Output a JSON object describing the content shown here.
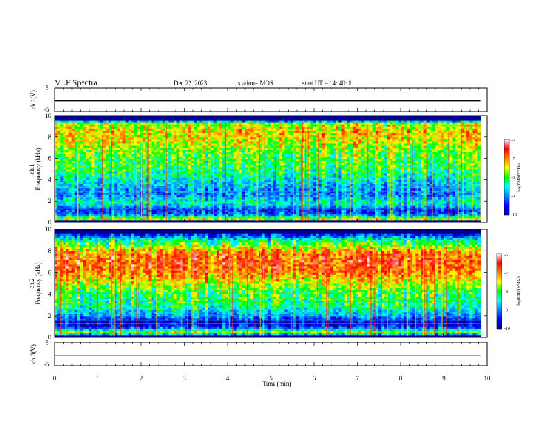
{
  "header": {
    "title": "VLF Spectra",
    "date": "Dec.22, 2023",
    "station": "station= MOS",
    "start": "start  UT  =   14: 40: 1"
  },
  "chart_data": [
    {
      "type": "line",
      "name": "ch1-waveform",
      "ylabel": "ch.1(V)",
      "ylim": [
        -5,
        5
      ],
      "yticks": [
        "5",
        "-5"
      ],
      "xlim": [
        0,
        10
      ],
      "level": -0.5
    },
    {
      "type": "heatmap",
      "name": "ch1-spectrogram",
      "ylabel": "ch.1\nFrequency (kHz)",
      "ylim": [
        0,
        10
      ],
      "yticks": [
        "0",
        "2",
        "4",
        "6",
        "8",
        "10"
      ],
      "xlim": [
        0,
        9.85
      ],
      "colorbar": {
        "label": "log(PSD)(V²/Hz)",
        "range": [
          -10,
          -6
        ],
        "ticks": [
          "-6",
          "-7",
          "-8",
          "-9",
          "-10"
        ]
      },
      "profile": [
        [
          0,
          -10
        ],
        [
          0.3,
          -7.6
        ],
        [
          0.8,
          -9.2
        ],
        [
          1.3,
          -9.3
        ],
        [
          1.6,
          -8.6
        ],
        [
          2.0,
          -8.4
        ],
        [
          2.6,
          -9.0
        ],
        [
          3.5,
          -8.7
        ],
        [
          5.0,
          -8.1
        ],
        [
          6.5,
          -7.9
        ],
        [
          7.5,
          -7.5
        ],
        [
          8.5,
          -7.3
        ],
        [
          9.3,
          -7.7
        ],
        [
          9.6,
          -9.3
        ],
        [
          10,
          -10
        ]
      ]
    },
    {
      "type": "heatmap",
      "name": "ch2-spectrogram",
      "ylabel": "ch.2\nFrequency (kHz)",
      "ylim": [
        0,
        10
      ],
      "yticks": [
        "0",
        "2",
        "4",
        "6",
        "8",
        "10"
      ],
      "xlim": [
        0,
        9.85
      ],
      "colorbar": {
        "label": "log(PSD)(V²/Hz)",
        "range": [
          -10,
          -6
        ],
        "ticks": [
          "-6",
          "-7",
          "-8",
          "-9",
          "-10"
        ]
      },
      "profile": [
        [
          0,
          -10
        ],
        [
          0.5,
          -7.8
        ],
        [
          1.0,
          -9.5
        ],
        [
          1.5,
          -9.7
        ],
        [
          2.0,
          -8.9
        ],
        [
          3.0,
          -8.2
        ],
        [
          4.0,
          -8.1
        ],
        [
          5.0,
          -7.6
        ],
        [
          6.0,
          -7.0
        ],
        [
          7.0,
          -6.8
        ],
        [
          7.8,
          -7.0
        ],
        [
          8.4,
          -7.6
        ],
        [
          9.0,
          -8.4
        ],
        [
          9.5,
          -9.4
        ],
        [
          10,
          -10
        ]
      ]
    },
    {
      "type": "line",
      "name": "ch3-waveform",
      "ylabel": "ch.3(V)",
      "ylim": [
        -5,
        5
      ],
      "yticks": [
        "5",
        "-5"
      ],
      "xlim": [
        0,
        10
      ],
      "level": -0.5
    }
  ],
  "xaxis": {
    "label": "Time (min)",
    "range": [
      0,
      10
    ],
    "ticks": [
      "0",
      "1",
      "2",
      "3",
      "4",
      "5",
      "6",
      "7",
      "8",
      "9",
      "10"
    ]
  }
}
